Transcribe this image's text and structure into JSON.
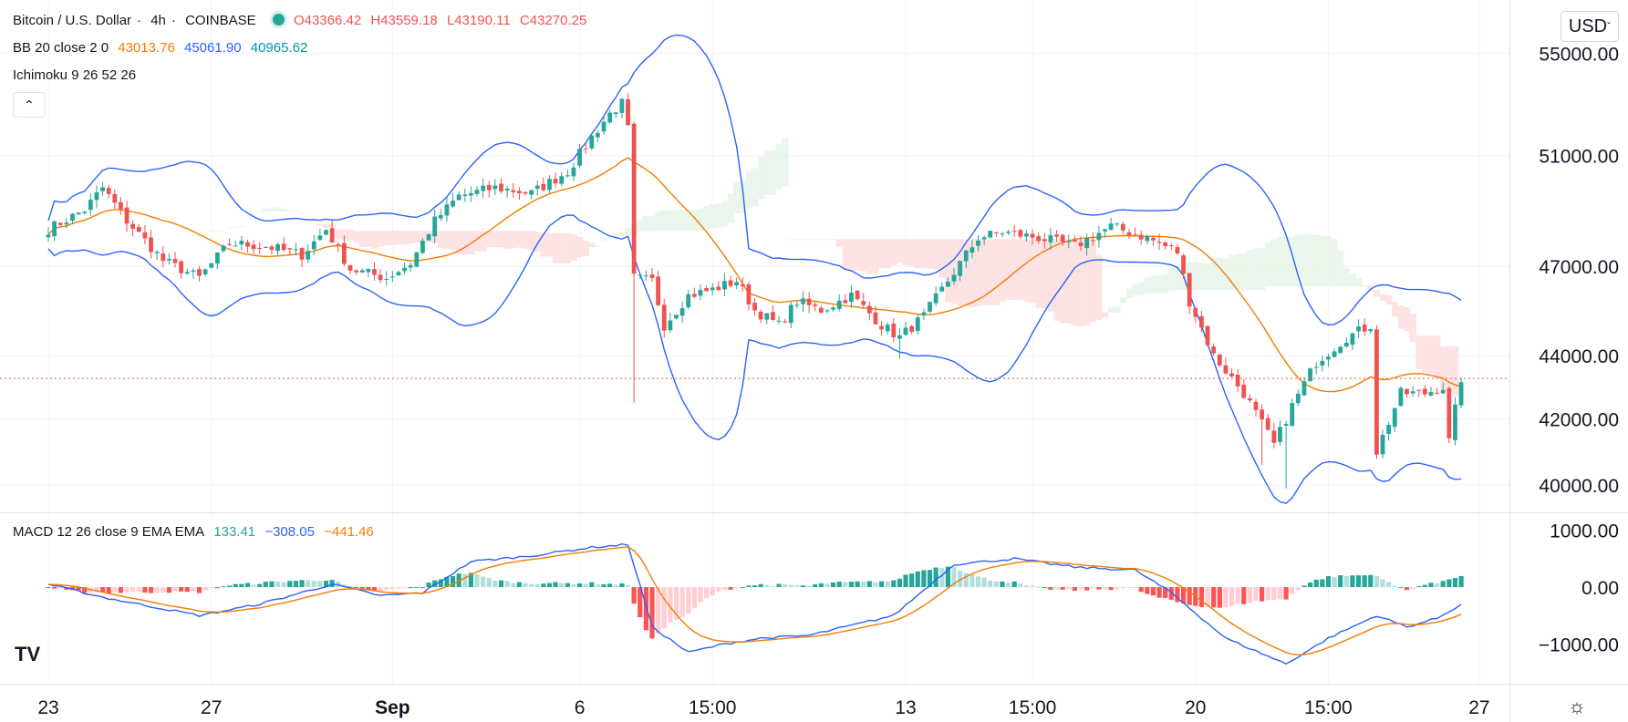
{
  "legend": {
    "symbol": "Bitcoin / U.S. Dollar",
    "interval": "4h",
    "exchange": "COINBASE",
    "open": "O43366.42",
    "high": "H43559.18",
    "low": "L43190.11",
    "close": "C43270.25",
    "bb_name": "BB 20 close 2 0",
    "bb_mid": "43013.76",
    "bb_upper": "45061.90",
    "bb_lower": "40965.62",
    "ichimoku": "Ichimoku 9 26 52 26",
    "collapse_icon": "chevron-up-icon"
  },
  "currency": "USD",
  "macd_legend": {
    "name": "MACD 12 26 close 9 EMA EMA",
    "hist": "133.41",
    "macd": "−308.05",
    "signal": "−441.46"
  },
  "logo": "TV",
  "colors": {
    "up": "#26a69a",
    "down": "#ef5350",
    "bb_band": "#2962ff",
    "bb_mid": "#f57c00",
    "cloud_up": "#e8f5e9",
    "cloud_down": "#fde0e0",
    "hist_up_strong": "#26a69a",
    "hist_up_weak": "#b2dfdb",
    "hist_down_strong": "#ff5252",
    "hist_down_weak": "#ffcdd2"
  },
  "chart_data": {
    "type": "candlestick",
    "title": "Bitcoin / U.S. Dollar · 4h · COINBASE",
    "price_axis": {
      "ticks": [
        "55000.00",
        "51000.00",
        "47000.00",
        "44000.00",
        "42000.00",
        "40000.00"
      ],
      "tick_values": [
        55000,
        51000,
        47000,
        44000,
        42000,
        40000
      ],
      "scale": "log",
      "range": [
        39200,
        57200
      ]
    },
    "macd_axis": {
      "ticks": [
        "1000.00",
        "0.00",
        "−1000.00"
      ],
      "tick_values": [
        1000,
        0,
        -1000
      ],
      "range": [
        -1700,
        1300
      ]
    },
    "time_axis": {
      "labels": [
        "23",
        "27",
        "Sep",
        "6",
        "15:00",
        "13",
        "15:00",
        "20",
        "15:00",
        "27"
      ],
      "label_bar_index": [
        0,
        27,
        57,
        88,
        110,
        142,
        163,
        190,
        212,
        237
      ]
    },
    "current_price": 43270.25,
    "close_keypoints": [
      [
        0,
        48300
      ],
      [
        6,
        49000
      ],
      [
        9,
        49800
      ],
      [
        13,
        48600
      ],
      [
        19,
        47200
      ],
      [
        25,
        46600
      ],
      [
        30,
        47800
      ],
      [
        36,
        47700
      ],
      [
        42,
        47400
      ],
      [
        46,
        48300
      ],
      [
        50,
        46900
      ],
      [
        56,
        46600
      ],
      [
        60,
        47100
      ],
      [
        64,
        48600
      ],
      [
        68,
        49500
      ],
      [
        74,
        49800
      ],
      [
        80,
        49600
      ],
      [
        86,
        50400
      ],
      [
        90,
        51700
      ],
      [
        93,
        52600
      ],
      [
        95,
        53000
      ],
      [
        96,
        52000
      ],
      [
        97,
        46600
      ],
      [
        100,
        46500
      ],
      [
        102,
        45000
      ],
      [
        106,
        46000
      ],
      [
        110,
        46200
      ],
      [
        114,
        46500
      ],
      [
        117,
        45500
      ],
      [
        121,
        45000
      ],
      [
        124,
        45800
      ],
      [
        128,
        45500
      ],
      [
        133,
        46000
      ],
      [
        138,
        45000
      ],
      [
        141,
        44600
      ],
      [
        145,
        45300
      ],
      [
        150,
        46800
      ],
      [
        154,
        48000
      ],
      [
        158,
        48200
      ],
      [
        164,
        48000
      ],
      [
        170,
        47700
      ],
      [
        176,
        48400
      ],
      [
        182,
        48000
      ],
      [
        187,
        47500
      ],
      [
        189,
        45800
      ],
      [
        193,
        44000
      ],
      [
        198,
        42800
      ],
      [
        203,
        41200
      ],
      [
        206,
        42400
      ],
      [
        210,
        43800
      ],
      [
        215,
        44600
      ],
      [
        219,
        45000
      ],
      [
        220,
        41000
      ],
      [
        224,
        42800
      ],
      [
        228,
        42800
      ],
      [
        231,
        43000
      ],
      [
        232,
        41300
      ],
      [
        234,
        43270
      ]
    ],
    "macd_keypoints": [
      [
        0,
        50
      ],
      [
        10,
        -200
      ],
      [
        25,
        -500
      ],
      [
        35,
        -300
      ],
      [
        47,
        50
      ],
      [
        55,
        -150
      ],
      [
        62,
        -100
      ],
      [
        70,
        450
      ],
      [
        80,
        550
      ],
      [
        90,
        700
      ],
      [
        96,
        750
      ],
      [
        100,
        -700
      ],
      [
        106,
        -1150
      ],
      [
        112,
        -1000
      ],
      [
        118,
        -900
      ],
      [
        126,
        -850
      ],
      [
        132,
        -700
      ],
      [
        140,
        -500
      ],
      [
        150,
        400
      ],
      [
        160,
        500
      ],
      [
        170,
        350
      ],
      [
        180,
        300
      ],
      [
        186,
        -100
      ],
      [
        195,
        -900
      ],
      [
        205,
        -1350
      ],
      [
        212,
        -900
      ],
      [
        220,
        -500
      ],
      [
        225,
        -700
      ],
      [
        230,
        -550
      ],
      [
        234,
        -300
      ]
    ],
    "bars": 235
  }
}
